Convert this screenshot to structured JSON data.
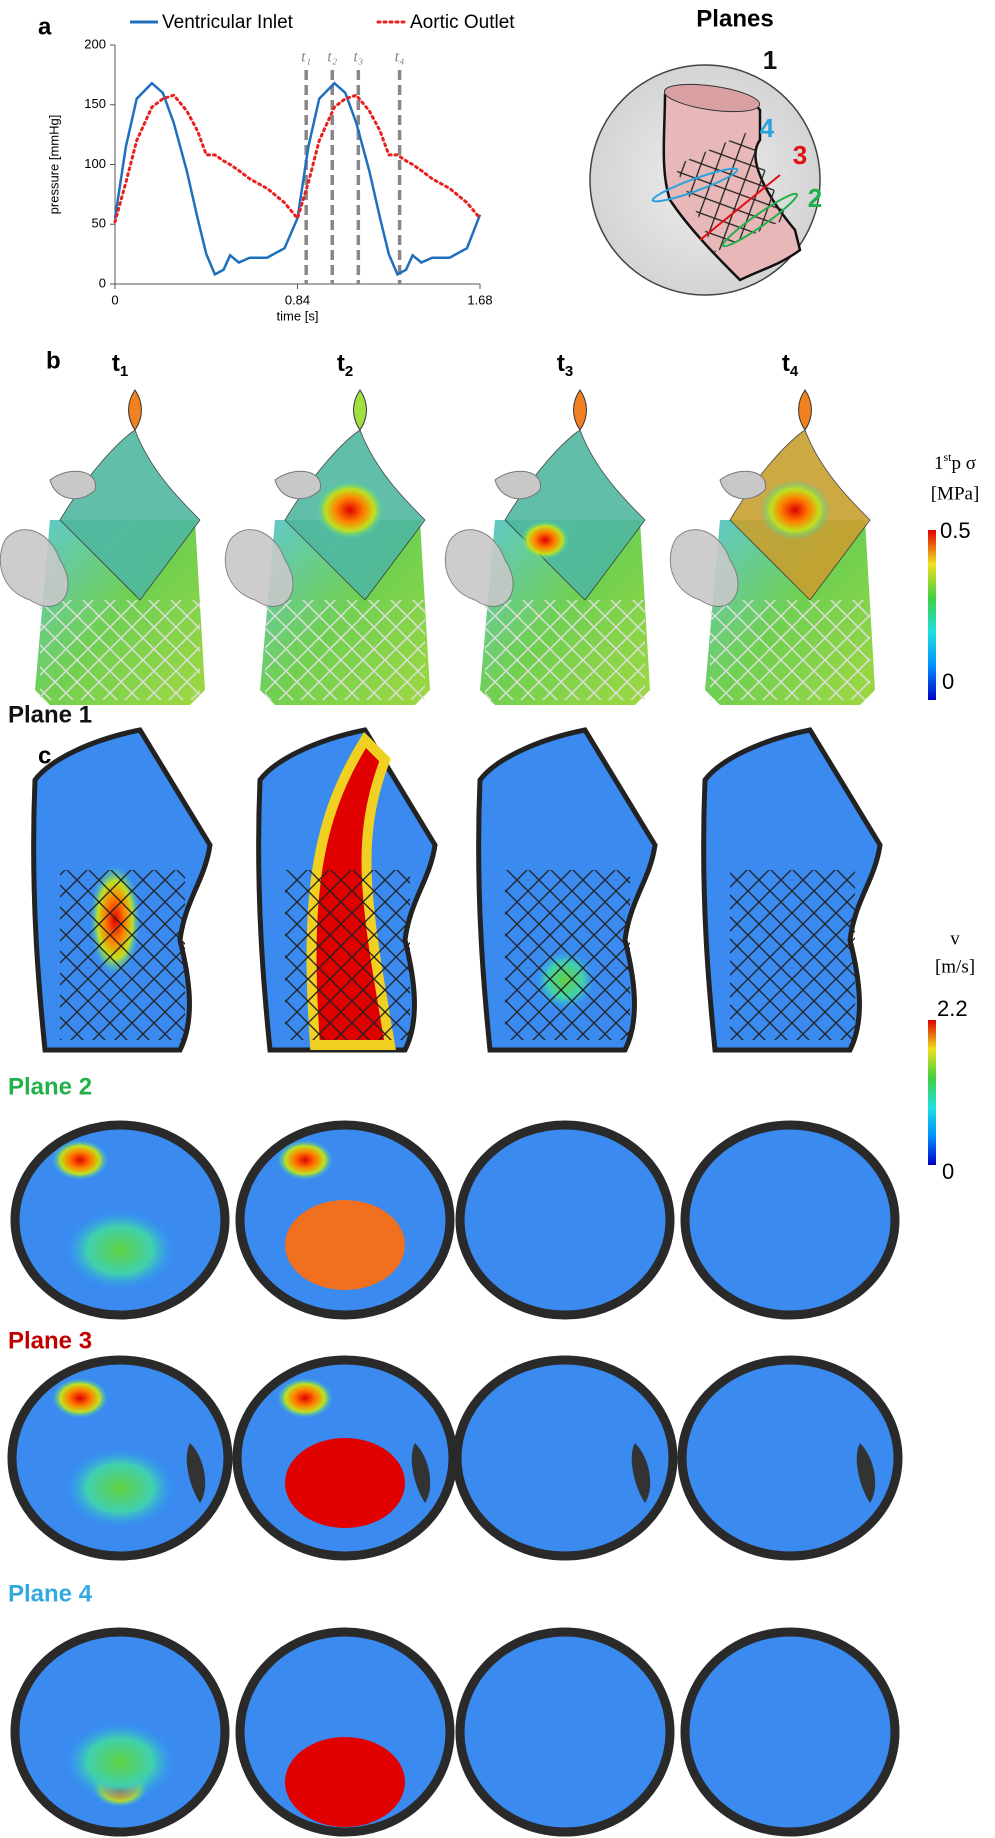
{
  "panel_labels": [
    "a",
    "b",
    "c"
  ],
  "chart_data": {
    "type": "line",
    "ylabel": "pressure [mmHg]",
    "xlabel": "time [s]",
    "x": [
      0,
      0.05,
      0.1,
      0.17,
      0.22,
      0.27,
      0.33,
      0.38,
      0.42,
      0.46,
      0.5,
      0.53,
      0.57,
      0.62,
      0.7,
      0.78,
      0.84,
      0.89,
      0.94,
      1.01,
      1.06,
      1.11,
      1.17,
      1.22,
      1.26,
      1.3,
      1.34,
      1.37,
      1.41,
      1.46,
      1.54,
      1.62,
      1.68
    ],
    "series": [
      {
        "name": "Ventricular Inlet",
        "color": "#1f6fbf",
        "style": "solid",
        "values": [
          55,
          115,
          155,
          168,
          160,
          135,
          95,
          55,
          25,
          8,
          12,
          24,
          18,
          22,
          22,
          30,
          55,
          115,
          155,
          168,
          160,
          135,
          95,
          55,
          25,
          8,
          12,
          24,
          18,
          22,
          22,
          30,
          58
        ]
      },
      {
        "name": "Aortic Outlet",
        "color": "#e8211e",
        "style": "dotted",
        "values": [
          52,
          85,
          120,
          148,
          155,
          158,
          145,
          128,
          108,
          108,
          103,
          100,
          95,
          88,
          80,
          68,
          55,
          85,
          120,
          148,
          155,
          158,
          145,
          128,
          108,
          108,
          103,
          100,
          95,
          88,
          80,
          68,
          55
        ]
      }
    ],
    "xlim": [
      0,
      1.68
    ],
    "xticks": [
      0,
      0.84,
      1.68
    ],
    "ylim": [
      0,
      200
    ],
    "yticks": [
      0,
      50,
      100,
      150,
      200
    ],
    "markers": {
      "labels": [
        "t₁",
        "t₂",
        "t₃",
        "t₄"
      ],
      "x": [
        0.88,
        1.0,
        1.12,
        1.31
      ],
      "color": "#888888"
    }
  },
  "planes_inset": {
    "title": "Planes",
    "labels": [
      {
        "text": "1",
        "color": "#111111"
      },
      {
        "text": "4",
        "color": "#29a3dd"
      },
      {
        "text": "3",
        "color": "#e01010"
      },
      {
        "text": "2",
        "color": "#22b04b"
      }
    ]
  },
  "time_labels": [
    {
      "t": "t",
      "sub": "1"
    },
    {
      "t": "t",
      "sub": "2"
    },
    {
      "t": "t",
      "sub": "3"
    },
    {
      "t": "t",
      "sub": "4"
    }
  ],
  "stress_colorbar": {
    "label_a": "1",
    "label_sup": "st",
    "label_b": "p σ",
    "unit": "[MPa]",
    "max": "0.5",
    "min": "0"
  },
  "velocity_colorbar": {
    "label": "v",
    "unit": "[m/s]",
    "max": "2.2",
    "min": "0"
  },
  "planes": [
    {
      "name": "Plane 1",
      "color": "#111111"
    },
    {
      "name": "Plane 2",
      "color": "#22b04b"
    },
    {
      "name": "Plane 3",
      "color": "#c00000"
    },
    {
      "name": "Plane 4",
      "color": "#33aadd"
    }
  ]
}
